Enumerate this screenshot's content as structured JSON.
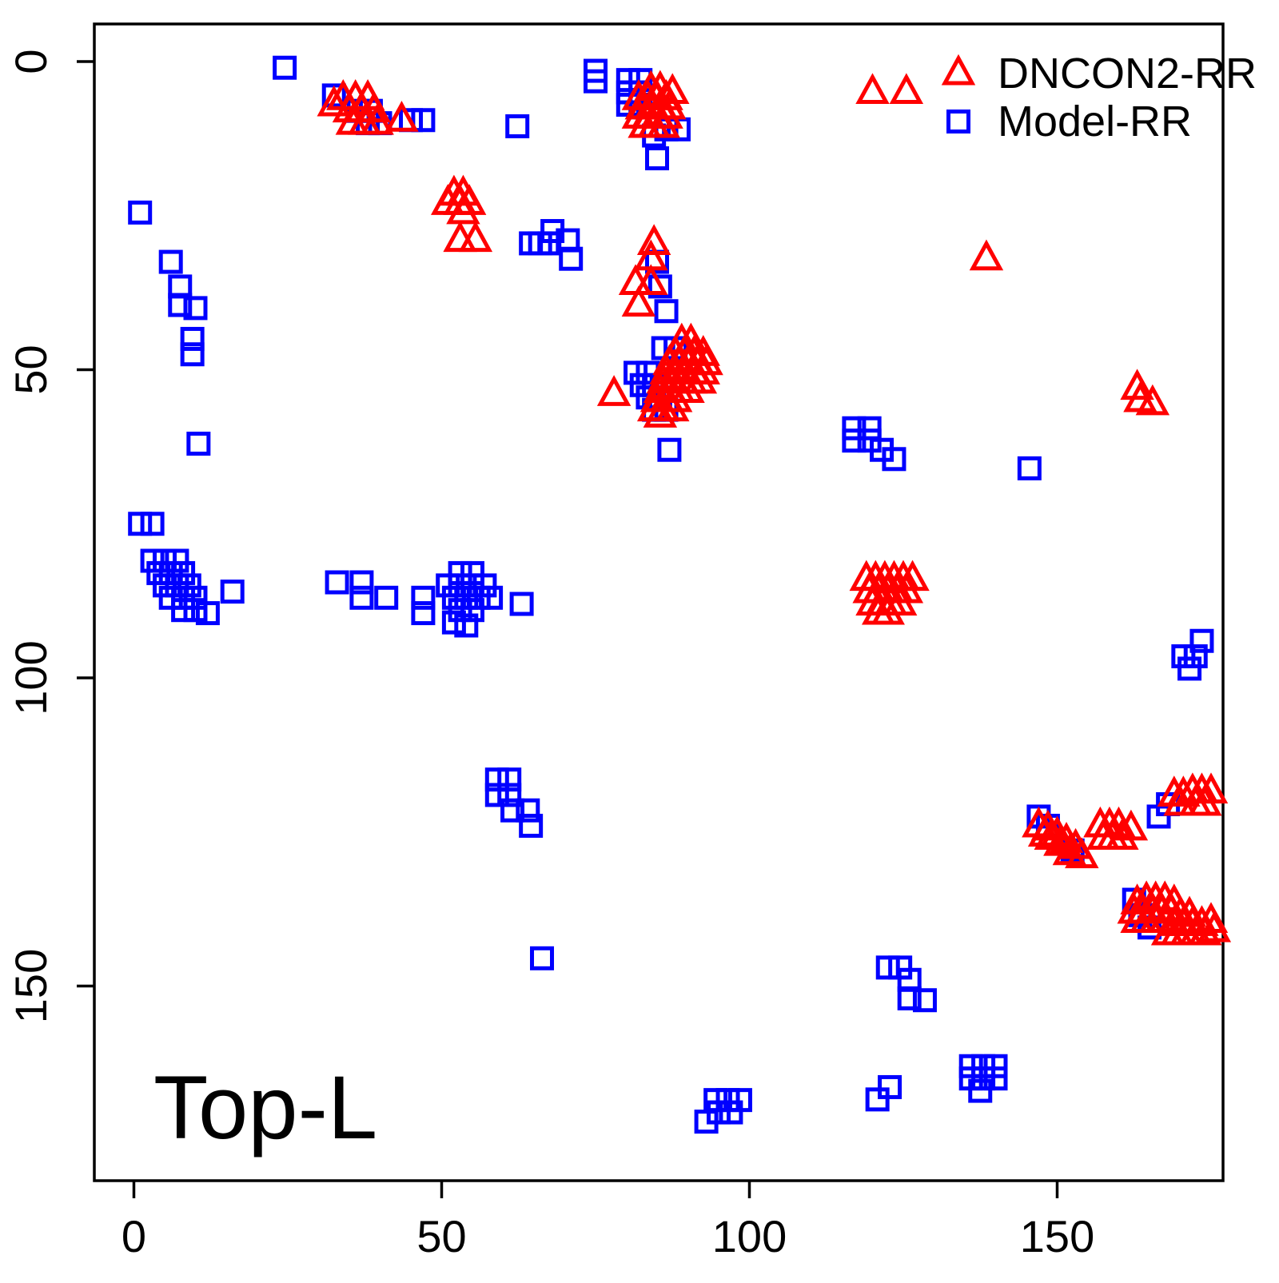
{
  "panel_label": "Top-L",
  "axes": {
    "x_tick_labels": [
      "0",
      "50",
      "100",
      "150"
    ],
    "y_tick_labels": [
      "0",
      "50",
      "100",
      "150"
    ]
  },
  "legend": {
    "items": [
      {
        "label": "DNCON2-RR",
        "marker": "triangle",
        "color": "#ff0000"
      },
      {
        "label": "Model-RR",
        "marker": "square",
        "color": "#0000ff"
      }
    ]
  },
  "chart_data": {
    "type": "scatter",
    "title": "",
    "xlabel": "",
    "ylabel": "",
    "x_ticks": [
      0,
      50,
      100,
      150
    ],
    "y_ticks": [
      0,
      50,
      100,
      150
    ],
    "xlim": [
      -7,
      177
    ],
    "ylim": [
      -7,
      182
    ],
    "y_axis_inverted": true,
    "grid": false,
    "legend_position": "top-right",
    "annotations": [
      "Top-L"
    ],
    "series": [
      {
        "name": "Model-RR",
        "marker": "square",
        "color": "#0000ff",
        "points": [
          [
            24.5,
            1
          ],
          [
            32.5,
            5.5
          ],
          [
            36.5,
            8
          ],
          [
            38.5,
            8
          ],
          [
            38,
            10
          ],
          [
            40,
            10
          ],
          [
            45,
            9.5
          ],
          [
            47,
            9.5
          ],
          [
            62.3,
            10.5
          ],
          [
            75,
            1.5
          ],
          [
            75,
            3.2
          ],
          [
            80.3,
            3
          ],
          [
            82.3,
            3
          ],
          [
            80.3,
            5
          ],
          [
            82.3,
            5
          ],
          [
            80.3,
            7
          ],
          [
            82.3,
            7
          ],
          [
            84.5,
            12
          ],
          [
            86.5,
            11
          ],
          [
            88.5,
            11
          ],
          [
            85,
            15.7
          ],
          [
            68,
            27.5
          ],
          [
            64.5,
            29.5
          ],
          [
            66,
            29.5
          ],
          [
            67.5,
            29.5
          ],
          [
            70.5,
            29
          ],
          [
            71,
            32
          ],
          [
            1,
            24.5
          ],
          [
            6,
            32.5
          ],
          [
            7.5,
            36.5
          ],
          [
            7.5,
            39.5
          ],
          [
            10,
            40
          ],
          [
            9.5,
            45
          ],
          [
            9.5,
            47.5
          ],
          [
            10.5,
            62
          ],
          [
            1,
            75
          ],
          [
            3,
            75
          ],
          [
            3,
            81
          ],
          [
            5,
            81
          ],
          [
            7,
            81
          ],
          [
            4,
            83
          ],
          [
            6,
            83
          ],
          [
            8,
            83
          ],
          [
            5,
            85
          ],
          [
            7,
            85
          ],
          [
            9,
            85
          ],
          [
            6,
            87
          ],
          [
            8,
            87
          ],
          [
            10,
            87
          ],
          [
            8,
            89
          ],
          [
            10,
            89
          ],
          [
            12,
            89.5
          ],
          [
            16,
            86
          ],
          [
            33,
            84.5
          ],
          [
            37,
            84.5
          ],
          [
            37,
            87
          ],
          [
            41,
            87
          ],
          [
            47,
            87
          ],
          [
            47,
            89.5
          ],
          [
            53,
            83
          ],
          [
            55,
            83
          ],
          [
            51,
            85
          ],
          [
            53,
            85
          ],
          [
            55,
            85
          ],
          [
            57,
            85
          ],
          [
            52,
            87
          ],
          [
            54,
            87
          ],
          [
            56,
            87
          ],
          [
            58,
            87
          ],
          [
            53,
            89
          ],
          [
            55,
            89
          ],
          [
            52,
            91
          ],
          [
            54,
            91.5
          ],
          [
            63,
            88
          ],
          [
            85,
            32.5
          ],
          [
            85.5,
            36.5
          ],
          [
            86.5,
            40.5
          ],
          [
            86,
            46.5
          ],
          [
            88,
            46.5
          ],
          [
            81.5,
            50.5
          ],
          [
            83.5,
            50.5
          ],
          [
            82.5,
            52.5
          ],
          [
            84.5,
            52.5
          ],
          [
            83.5,
            54.5
          ],
          [
            85.5,
            54.5
          ],
          [
            84.5,
            56.5
          ],
          [
            86.5,
            56.5
          ],
          [
            87,
            63
          ],
          [
            117,
            59.5
          ],
          [
            119.5,
            59.5
          ],
          [
            117,
            61.5
          ],
          [
            119.5,
            61.5
          ],
          [
            121.5,
            63
          ],
          [
            123.5,
            64.5
          ],
          [
            145.5,
            66
          ],
          [
            59,
            116.5
          ],
          [
            61,
            116.5
          ],
          [
            59,
            119
          ],
          [
            61,
            119
          ],
          [
            61.5,
            121.5
          ],
          [
            64,
            121.5
          ],
          [
            64.5,
            124
          ],
          [
            66.3,
            145.5
          ],
          [
            122.5,
            147
          ],
          [
            124.5,
            147
          ],
          [
            126,
            149
          ],
          [
            126,
            152
          ],
          [
            128.5,
            152.3
          ],
          [
            120.8,
            168.4
          ],
          [
            122.8,
            166.4
          ],
          [
            94.5,
            168.5
          ],
          [
            96.5,
            168.5
          ],
          [
            98.5,
            168.5
          ],
          [
            95,
            170.5
          ],
          [
            97,
            170.5
          ],
          [
            93,
            172
          ],
          [
            136,
            163
          ],
          [
            138,
            163
          ],
          [
            140,
            163
          ],
          [
            136,
            165
          ],
          [
            138,
            165
          ],
          [
            140,
            165
          ],
          [
            137.5,
            167
          ],
          [
            173.5,
            94
          ],
          [
            170.5,
            96.5
          ],
          [
            172.5,
            96.5
          ],
          [
            171.5,
            98.5
          ],
          [
            147,
            122.5
          ],
          [
            148.5,
            124
          ],
          [
            152.5,
            128
          ],
          [
            166.5,
            122.5
          ],
          [
            168,
            120.5
          ],
          [
            162.5,
            136
          ],
          [
            163.5,
            138.5
          ],
          [
            165,
            140.5
          ]
        ]
      },
      {
        "name": "DNCON2-RR",
        "marker": "triangle",
        "color": "#ff0000",
        "points": [
          [
            32.5,
            7
          ],
          [
            34,
            6
          ],
          [
            36,
            6
          ],
          [
            38,
            6
          ],
          [
            35,
            8
          ],
          [
            37,
            8
          ],
          [
            39,
            8
          ],
          [
            35.5,
            10
          ],
          [
            37.5,
            10
          ],
          [
            39.5,
            10
          ],
          [
            43.5,
            9.5
          ],
          [
            52,
            21.5
          ],
          [
            53.5,
            21.5
          ],
          [
            51,
            23
          ],
          [
            53,
            23
          ],
          [
            54.5,
            23
          ],
          [
            53.5,
            24.5
          ],
          [
            53,
            29
          ],
          [
            55.5,
            29
          ],
          [
            84,
            4.5
          ],
          [
            85.5,
            4.5
          ],
          [
            87.5,
            5
          ],
          [
            82,
            6
          ],
          [
            83.5,
            6
          ],
          [
            85,
            6
          ],
          [
            86.5,
            6
          ],
          [
            82.5,
            7.5
          ],
          [
            84,
            7.5
          ],
          [
            85.5,
            7.5
          ],
          [
            87,
            7.5
          ],
          [
            82,
            9
          ],
          [
            83.5,
            9
          ],
          [
            85,
            9
          ],
          [
            86.5,
            9
          ],
          [
            83,
            10.5
          ],
          [
            84.5,
            10.5
          ],
          [
            86,
            10.5
          ],
          [
            120,
            5
          ],
          [
            125.5,
            5
          ],
          [
            84.5,
            29.5
          ],
          [
            84,
            32
          ],
          [
            81.5,
            36
          ],
          [
            84,
            36
          ],
          [
            82,
            39.5
          ],
          [
            78,
            54
          ],
          [
            89,
            45.5
          ],
          [
            90.5,
            45.5
          ],
          [
            88,
            47.5
          ],
          [
            89.5,
            47.5
          ],
          [
            91,
            47.5
          ],
          [
            92.5,
            47.5
          ],
          [
            87,
            49
          ],
          [
            88.5,
            49
          ],
          [
            90,
            49
          ],
          [
            91.5,
            49
          ],
          [
            93,
            49
          ],
          [
            86.5,
            50.5
          ],
          [
            88,
            50.5
          ],
          [
            89.5,
            50.5
          ],
          [
            91,
            50.5
          ],
          [
            92.5,
            50.5
          ],
          [
            86,
            52
          ],
          [
            87.5,
            52
          ],
          [
            89,
            52
          ],
          [
            90.5,
            52
          ],
          [
            92,
            52
          ],
          [
            85.5,
            53.5
          ],
          [
            87,
            53.5
          ],
          [
            88.5,
            53.5
          ],
          [
            90,
            53.5
          ],
          [
            85,
            55
          ],
          [
            86.5,
            55
          ],
          [
            88,
            55
          ],
          [
            84.5,
            56.5
          ],
          [
            86,
            56.5
          ],
          [
            87.5,
            56.5
          ],
          [
            85.5,
            57.5
          ],
          [
            119,
            84
          ],
          [
            120.5,
            84
          ],
          [
            122,
            84
          ],
          [
            123.5,
            84
          ],
          [
            125,
            84
          ],
          [
            126.5,
            84
          ],
          [
            119.5,
            86
          ],
          [
            121,
            86
          ],
          [
            122.5,
            86
          ],
          [
            124,
            86
          ],
          [
            125.5,
            86
          ],
          [
            120,
            88
          ],
          [
            121.5,
            88
          ],
          [
            123,
            88
          ],
          [
            124.5,
            88
          ],
          [
            121,
            89.5
          ],
          [
            122.5,
            89.5
          ],
          [
            138.5,
            32
          ],
          [
            163,
            53
          ],
          [
            163.5,
            55
          ],
          [
            165.5,
            55.5
          ],
          [
            147,
            124
          ],
          [
            148.5,
            124.5
          ],
          [
            150,
            125.5
          ],
          [
            151.5,
            126.5
          ],
          [
            153,
            127.5
          ],
          [
            154,
            129
          ],
          [
            149,
            126
          ],
          [
            150.5,
            127
          ],
          [
            152,
            128.5
          ],
          [
            148,
            125.5
          ],
          [
            157,
            124
          ],
          [
            158.5,
            124
          ],
          [
            160,
            124
          ],
          [
            157.5,
            126
          ],
          [
            159,
            126
          ],
          [
            160.5,
            126
          ],
          [
            162,
            124.5
          ],
          [
            169,
            119
          ],
          [
            170.5,
            119
          ],
          [
            172,
            118.5
          ],
          [
            173.5,
            118.5
          ],
          [
            175,
            118.5
          ],
          [
            170,
            120.5
          ],
          [
            172.5,
            120.5
          ],
          [
            174,
            120.5
          ],
          [
            163,
            136.5
          ],
          [
            164.5,
            136
          ],
          [
            166,
            136
          ],
          [
            167.5,
            136
          ],
          [
            169,
            136.5
          ],
          [
            162.5,
            138
          ],
          [
            164,
            138
          ],
          [
            165.5,
            138
          ],
          [
            167,
            138
          ],
          [
            168.5,
            138
          ],
          [
            170,
            138.5
          ],
          [
            171.5,
            138.5
          ],
          [
            163,
            139.5
          ],
          [
            164.5,
            139.5
          ],
          [
            166,
            139.5
          ],
          [
            167.5,
            139.5
          ],
          [
            169,
            140
          ],
          [
            170.5,
            140
          ],
          [
            172,
            140
          ],
          [
            173.5,
            140
          ],
          [
            175,
            139.5
          ],
          [
            168,
            141.5
          ],
          [
            169.5,
            141.5
          ],
          [
            171,
            141.5
          ],
          [
            172.5,
            141.5
          ],
          [
            174,
            141.5
          ],
          [
            175.5,
            141
          ]
        ]
      }
    ]
  }
}
